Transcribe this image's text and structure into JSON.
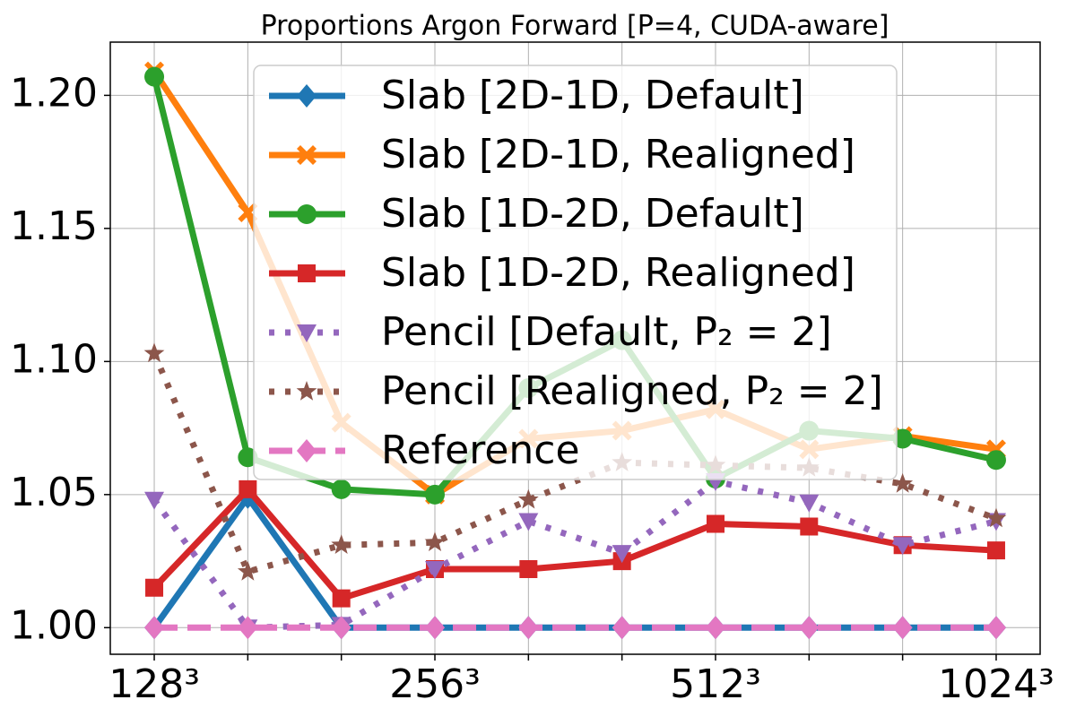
{
  "chart_data": {
    "type": "line",
    "title": "Proportions Argon Forward [P=4, CUDA-aware]",
    "categories": [
      "128³",
      null,
      null,
      "256³",
      null,
      null,
      "512³",
      null,
      null,
      "1024³"
    ],
    "series": [
      {
        "name": "Slab [2D-1D, Default]",
        "color": "#1f77b4",
        "marker": "diamond",
        "linestyle": "solid",
        "values": [
          1.0,
          1.049,
          1.0,
          1.0,
          1.0,
          1.0,
          1.0,
          1.0,
          1.0,
          1.0
        ]
      },
      {
        "name": "Slab [2D-1D, Realigned]",
        "color": "#ff7f0e",
        "marker": "x",
        "linestyle": "solid",
        "values": [
          1.209,
          1.156,
          1.077,
          1.05,
          1.071,
          1.074,
          1.082,
          1.067,
          1.072,
          1.067
        ]
      },
      {
        "name": "Slab [1D-2D, Default]",
        "color": "#2ca02c",
        "marker": "circle",
        "linestyle": "solid",
        "values": [
          1.207,
          1.064,
          1.052,
          1.05,
          1.09,
          1.108,
          1.056,
          1.074,
          1.071,
          1.063
        ]
      },
      {
        "name": "Slab [1D-2D, Realigned]",
        "color": "#d62728",
        "marker": "square",
        "linestyle": "solid",
        "values": [
          1.015,
          1.052,
          1.011,
          1.022,
          1.022,
          1.025,
          1.039,
          1.038,
          1.031,
          1.029
        ]
      },
      {
        "name": "Pencil [Default, P₂ = 2]",
        "color": "#9467bd",
        "marker": "triangle-down",
        "linestyle": "dotted",
        "values": [
          1.048,
          1.0,
          1.001,
          1.022,
          1.04,
          1.028,
          1.055,
          1.047,
          1.031,
          1.04
        ]
      },
      {
        "name": "Pencil [Realigned, P₂ = 2]",
        "color": "#8c564b",
        "marker": "star",
        "linestyle": "dotted",
        "values": [
          1.103,
          1.021,
          1.031,
          1.032,
          1.048,
          1.062,
          1.061,
          1.06,
          1.054,
          1.041
        ]
      },
      {
        "name": "Reference",
        "color": "#e377c2",
        "marker": "diamond",
        "linestyle": "dashed",
        "values": [
          1.0,
          1.0,
          1.0,
          1.0,
          1.0,
          1.0,
          1.0,
          1.0,
          1.0,
          1.0
        ]
      }
    ],
    "ylim": [
      0.99,
      1.22
    ],
    "yticks": [
      {
        "value": 1.0,
        "label": "1.00"
      },
      1.05,
      {
        "value": 1.1,
        "label": "1.10"
      },
      1.15,
      {
        "value": 1.2,
        "label": "1.20"
      }
    ],
    "grid": true,
    "legend": "upper right"
  }
}
